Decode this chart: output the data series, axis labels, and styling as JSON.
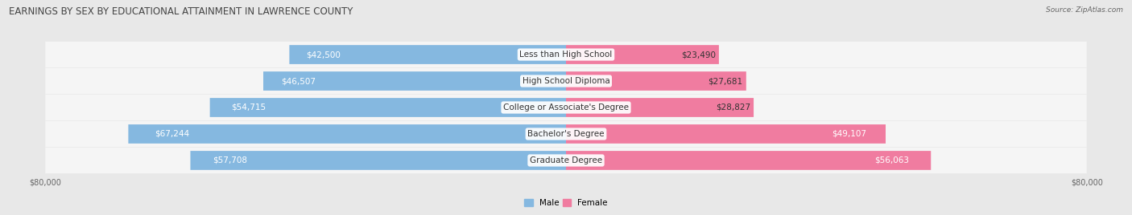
{
  "title": "EARNINGS BY SEX BY EDUCATIONAL ATTAINMENT IN LAWRENCE COUNTY",
  "source": "Source: ZipAtlas.com",
  "categories": [
    "Less than High School",
    "High School Diploma",
    "College or Associate's Degree",
    "Bachelor's Degree",
    "Graduate Degree"
  ],
  "male_values": [
    42500,
    46507,
    54715,
    67244,
    57708
  ],
  "female_values": [
    23490,
    27681,
    28827,
    49107,
    56063
  ],
  "male_color": "#85b8e0",
  "female_color": "#f07ca0",
  "male_label": "Male",
  "female_label": "Female",
  "max_val": 80000,
  "bar_height": 0.72,
  "background_color": "#e8e8e8",
  "row_bg_color": "#f5f5f5",
  "label_fontsize": 7.5,
  "value_fontsize": 7.5,
  "title_fontsize": 8.5,
  "axis_label_fontsize": 7,
  "inside_label_threshold": 35000
}
